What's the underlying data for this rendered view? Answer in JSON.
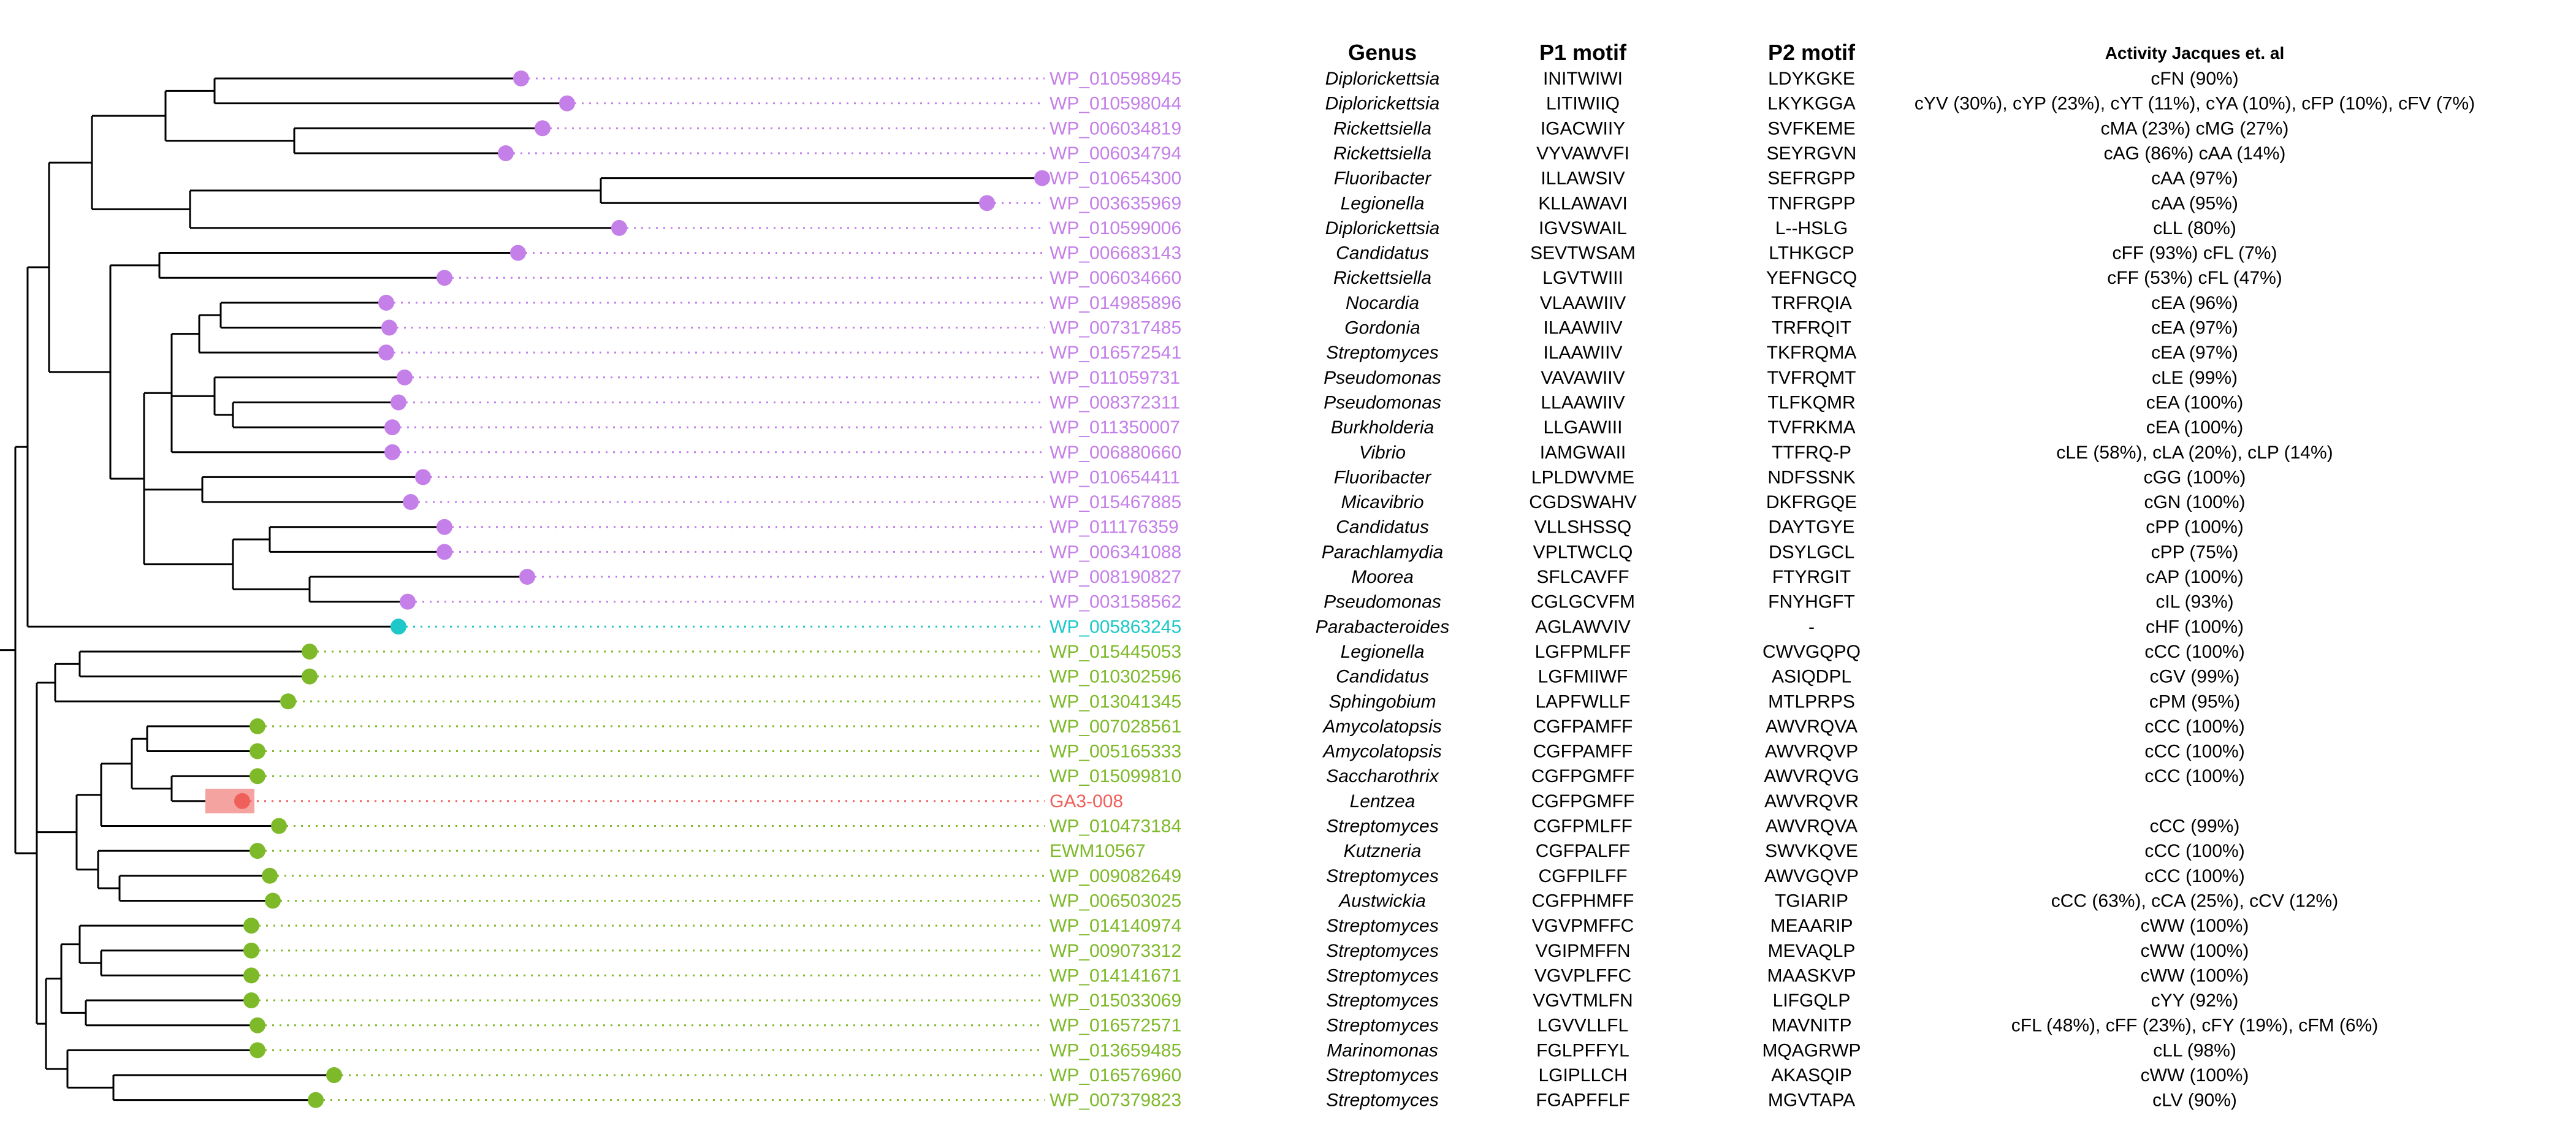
{
  "headers": {
    "genus": "Genus",
    "p1": "P1 motif",
    "p2": "P2 motif",
    "activity": "Activity Jacques et. al"
  },
  "colors": {
    "purple": "#c47fe8",
    "cyan": "#1ec8c8",
    "green": "#7db928",
    "red": "#f0605a",
    "highlight": "#f4a3a0",
    "branch": "#000000"
  },
  "rows": [
    {
      "id": "WP_010598945",
      "genus": "Diplorickettsia",
      "p1": "INITWIWI",
      "p2": "LDYKGKE",
      "activity": "cFN (90%)",
      "color": "purple"
    },
    {
      "id": "WP_010598044",
      "genus": "Diplorickettsia",
      "p1": "LITIWIIQ",
      "p2": "LKYKGGA",
      "activity": "cYV (30%), cYP (23%), cYT (11%), cYA (10%), cFP (10%), cFV (7%)",
      "color": "purple"
    },
    {
      "id": "WP_006034819",
      "genus": "Rickettsiella",
      "p1": "IGACWIIY",
      "p2": "SVFKEME",
      "activity": "cMA (23%) cMG (27%)",
      "color": "purple"
    },
    {
      "id": "WP_006034794",
      "genus": "Rickettsiella",
      "p1": "VYVAWVFI",
      "p2": "SEYRGVN",
      "activity": "cAG (86%) cAA (14%)",
      "color": "purple"
    },
    {
      "id": "WP_010654300",
      "genus": "Fluoribacter",
      "p1": "ILLAWSIV",
      "p2": "SEFRGPP",
      "activity": "cAA (97%)",
      "color": "purple"
    },
    {
      "id": "WP_003635969",
      "genus": "Legionella",
      "p1": "KLLAWAVI",
      "p2": "TNFRGPP",
      "activity": "cAA (95%)",
      "color": "purple"
    },
    {
      "id": "WP_010599006",
      "genus": "Diplorickettsia",
      "p1": "IGVSWAIL",
      "p2": "L--HSLG",
      "activity": "cLL (80%)",
      "color": "purple"
    },
    {
      "id": "WP_006683143",
      "genus": "Candidatus",
      "p1": "SEVTWSAM",
      "p2": "LTHKGCP",
      "activity": "cFF (93%) cFL (7%)",
      "color": "purple"
    },
    {
      "id": "WP_006034660",
      "genus": "Rickettsiella",
      "p1": "LGVTWIII",
      "p2": "YEFNGCQ",
      "activity": "cFF (53%) cFL (47%)",
      "color": "purple"
    },
    {
      "id": "WP_014985896",
      "genus": "Nocardia",
      "p1": "VLAAWIIV",
      "p2": "TRFRQIA",
      "activity": "cEA (96%)",
      "color": "purple"
    },
    {
      "id": "WP_007317485",
      "genus": "Gordonia",
      "p1": "ILAAWIIV",
      "p2": "TRFRQIT",
      "activity": "cEA (97%)",
      "color": "purple"
    },
    {
      "id": "WP_016572541",
      "genus": "Streptomyces",
      "p1": "ILAAWIIV",
      "p2": "TKFRQMA",
      "activity": "cEA (97%)",
      "color": "purple"
    },
    {
      "id": "WP_011059731",
      "genus": "Pseudomonas",
      "p1": "VAVAWIIV",
      "p2": "TVFRQMT",
      "activity": "cLE (99%)",
      "color": "purple"
    },
    {
      "id": "WP_008372311",
      "genus": "Pseudomonas",
      "p1": "LLAAWIIV",
      "p2": "TLFKQMR",
      "activity": "cEA (100%)",
      "color": "purple"
    },
    {
      "id": "WP_011350007",
      "genus": "Burkholderia",
      "p1": "LLGAWIII",
      "p2": "TVFRKMA",
      "activity": "cEA (100%)",
      "color": "purple"
    },
    {
      "id": "WP_006880660",
      "genus": "Vibrio",
      "p1": "IAMGWAII",
      "p2": "TTFRQ-P",
      "activity": "cLE (58%), cLA (20%), cLP (14%)",
      "color": "purple"
    },
    {
      "id": "WP_010654411",
      "genus": "Fluoribacter",
      "p1": "LPLDWVME",
      "p2": "NDFSSNK",
      "activity": "cGG (100%)",
      "color": "purple"
    },
    {
      "id": "WP_015467885",
      "genus": "Micavibrio",
      "p1": "CGDSWAHV",
      "p2": "DKFRGQE",
      "activity": "cGN (100%)",
      "color": "purple"
    },
    {
      "id": "WP_011176359",
      "genus": "Candidatus",
      "p1": "VLLSHSSQ",
      "p2": "DAYTGYE",
      "activity": "cPP (100%)",
      "color": "purple"
    },
    {
      "id": "WP_006341088",
      "genus": "Parachlamydia",
      "p1": "VPLTWCLQ",
      "p2": "DSYLGCL",
      "activity": "cPP (75%)",
      "color": "purple"
    },
    {
      "id": "WP_008190827",
      "genus": "Moorea",
      "p1": "SFLCAVFF",
      "p2": "FTYRGIT",
      "activity": "cAP (100%)",
      "color": "purple"
    },
    {
      "id": "WP_003158562",
      "genus": "Pseudomonas",
      "p1": "CGLGCVFM",
      "p2": "FNYHGFT",
      "activity": "cIL (93%)",
      "color": "purple"
    },
    {
      "id": "WP_005863245",
      "genus": "Parabacteroides",
      "p1": "AGLAWVIV",
      "p2": "-",
      "activity": "cHF (100%)",
      "color": "cyan"
    },
    {
      "id": "WP_015445053",
      "genus": "Legionella",
      "p1": "LGFPMLFF",
      "p2": "CWVGQPQ",
      "activity": "cCC (100%)",
      "color": "green"
    },
    {
      "id": "WP_010302596",
      "genus": "Candidatus",
      "p1": "LGFMIIWF",
      "p2": "ASIQDPL",
      "activity": "cGV (99%)",
      "color": "green"
    },
    {
      "id": "WP_013041345",
      "genus": "Sphingobium",
      "p1": "LAPFWLLF",
      "p2": "MTLPRPS",
      "activity": "cPM (95%)",
      "color": "green"
    },
    {
      "id": "WP_007028561",
      "genus": "Amycolatopsis",
      "p1": "CGFPAMFF",
      "p2": "AWVRQVA",
      "activity": "cCC (100%)",
      "color": "green"
    },
    {
      "id": "WP_005165333",
      "genus": "Amycolatopsis",
      "p1": "CGFPAMFF",
      "p2": "AWVRQVP",
      "activity": "cCC (100%)",
      "color": "green"
    },
    {
      "id": "WP_015099810",
      "genus": "Saccharothrix",
      "p1": "CGFPGMFF",
      "p2": "AWVRQVG",
      "activity": "cCC (100%)",
      "color": "green"
    },
    {
      "id": "GA3-008",
      "genus": "Lentzea",
      "p1": "CGFPGMFF",
      "p2": "AWVRQVR",
      "activity": "",
      "color": "red"
    },
    {
      "id": "WP_010473184",
      "genus": "Streptomyces",
      "p1": "CGFPMLFF",
      "p2": "AWVRQVA",
      "activity": "cCC (99%)",
      "color": "green"
    },
    {
      "id": "EWM10567",
      "genus": "Kutzneria",
      "p1": "CGFPALFF",
      "p2": "SWVKQVE",
      "activity": "cCC (100%)",
      "color": "green"
    },
    {
      "id": "WP_009082649",
      "genus": "Streptomyces",
      "p1": "CGFPILFF",
      "p2": "AWVGQVP",
      "activity": "cCC (100%)",
      "color": "green"
    },
    {
      "id": "WP_006503025",
      "genus": "Austwickia",
      "p1": "CGFPHMFF",
      "p2": "TGIARIP",
      "activity": "cCC (63%), cCA (25%), cCV (12%)",
      "color": "green"
    },
    {
      "id": "WP_014140974",
      "genus": "Streptomyces",
      "p1": "VGVPMFFC",
      "p2": "MEAARIP",
      "activity": "cWW (100%)",
      "color": "green"
    },
    {
      "id": "WP_009073312",
      "genus": "Streptomyces",
      "p1": "VGIPMFFN",
      "p2": "MEVAQLP",
      "activity": "cWW (100%)",
      "color": "green"
    },
    {
      "id": "WP_014141671",
      "genus": "Streptomyces",
      "p1": "VGVPLFFC",
      "p2": "MAASKVP",
      "activity": "cWW (100%)",
      "color": "green"
    },
    {
      "id": "WP_015033069",
      "genus": "Streptomyces",
      "p1": "VGVTMLFN",
      "p2": "LIFGQLP",
      "activity": "cYY (92%)",
      "color": "green"
    },
    {
      "id": "WP_016572571",
      "genus": "Streptomyces",
      "p1": "LGVVLLFL",
      "p2": "MAVNITP",
      "activity": "cFL (48%), cFF (23%), cFY (19%), cFM (6%)",
      "color": "green"
    },
    {
      "id": "WP_013659485",
      "genus": "Marinomonas",
      "p1": "FGLPFFYL",
      "p2": "MQAGRWP",
      "activity": "cLL (98%)",
      "color": "green"
    },
    {
      "id": "WP_016576960",
      "genus": "Streptomyces",
      "p1": "LGIPLLCH",
      "p2": "AKASQIP",
      "activity": "cWW (100%)",
      "color": "green"
    },
    {
      "id": "WP_007379823",
      "genus": "Streptomyces",
      "p1": "FGAPFFLF",
      "p2": "MGVTAPA",
      "activity": "cLV (90%)",
      "color": "green"
    }
  ]
}
